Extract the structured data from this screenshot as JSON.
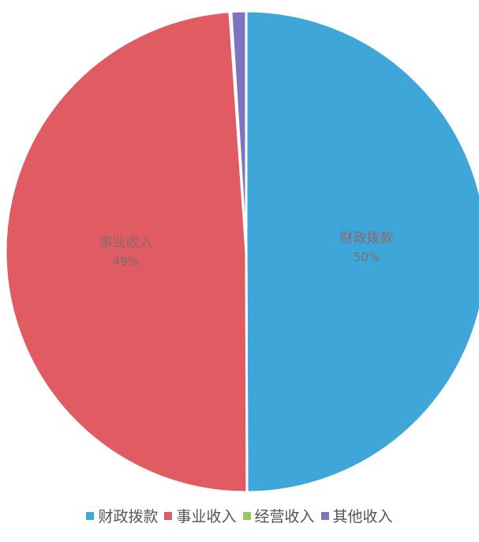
{
  "chart_data": {
    "type": "pie",
    "title": "",
    "slices": [
      {
        "name": "财政拨款",
        "value": 50,
        "label_pct": "50%",
        "color": "#3fa6d9",
        "show_label": true
      },
      {
        "name": "事业收入",
        "value": 49,
        "label_pct": "49%",
        "color": "#e05b62",
        "show_label": true
      },
      {
        "name": "经营收入",
        "value": 0.1,
        "label_pct": "",
        "color": "#93c85a",
        "show_label": false
      },
      {
        "name": "其他收入",
        "value": 1,
        "label_pct": "",
        "color": "#7f73c0",
        "show_label": false
      }
    ],
    "legend": {
      "position": "bottom"
    }
  }
}
